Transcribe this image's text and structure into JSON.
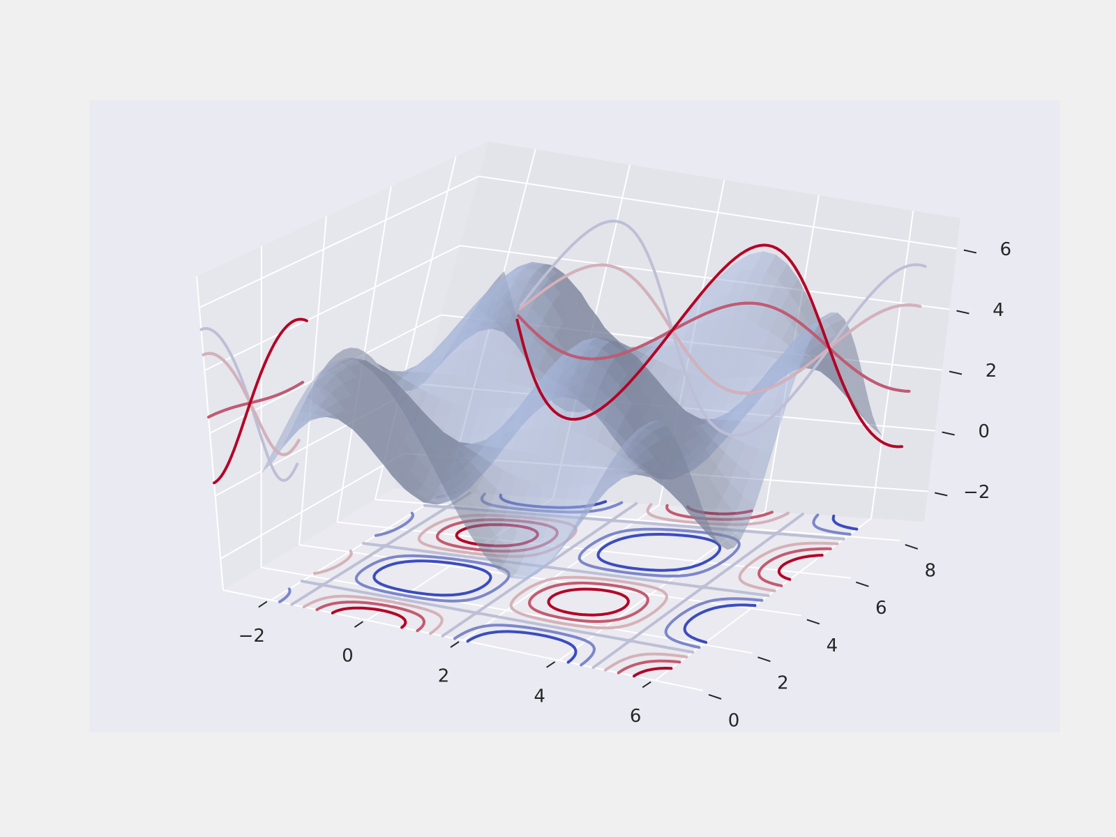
{
  "chart_data": {
    "type": "surface3d",
    "title": "",
    "xlabel": "",
    "ylabel": "",
    "zlabel": "",
    "surface": {
      "function": "3*cos(x)*cos(y)+2.3",
      "xrange": [
        -2,
        6
      ],
      "yrange": [
        0,
        9
      ],
      "color": "#8ba0c2",
      "alpha": 0.55
    },
    "axes": {
      "x": {
        "range": [
          -3,
          7
        ],
        "ticks": [
          -2,
          0,
          2,
          4,
          6
        ],
        "tick_labels": [
          "−2",
          "0",
          "2",
          "4",
          "6"
        ]
      },
      "y": {
        "range": [
          0,
          9
        ],
        "ticks": [
          0,
          2,
          4,
          6,
          8
        ],
        "tick_labels": [
          "0",
          "2",
          "4",
          "6",
          "8"
        ]
      },
      "z": {
        "range": [
          -3,
          7
        ],
        "ticks": [
          -2,
          0,
          2,
          4,
          6
        ],
        "tick_labels": [
          "−2",
          "0",
          "2",
          "4",
          "6"
        ]
      }
    },
    "projections": {
      "x_wall_at": -3,
      "y_wall_at": 9,
      "floor_at": -3,
      "levels": [
        -1.5,
        -0.75,
        0.0,
        0.75,
        1.5,
        2.25
      ],
      "colormap": "coolwarm"
    },
    "colors": {
      "figure_bg": "#f0f0f0",
      "axes_bg": "#eaeaf2",
      "pane": "#e5e5ec",
      "grid": "#ffffff",
      "low": "#3b4cc0",
      "mid": "#dddcdc",
      "high": "#b40426"
    }
  }
}
